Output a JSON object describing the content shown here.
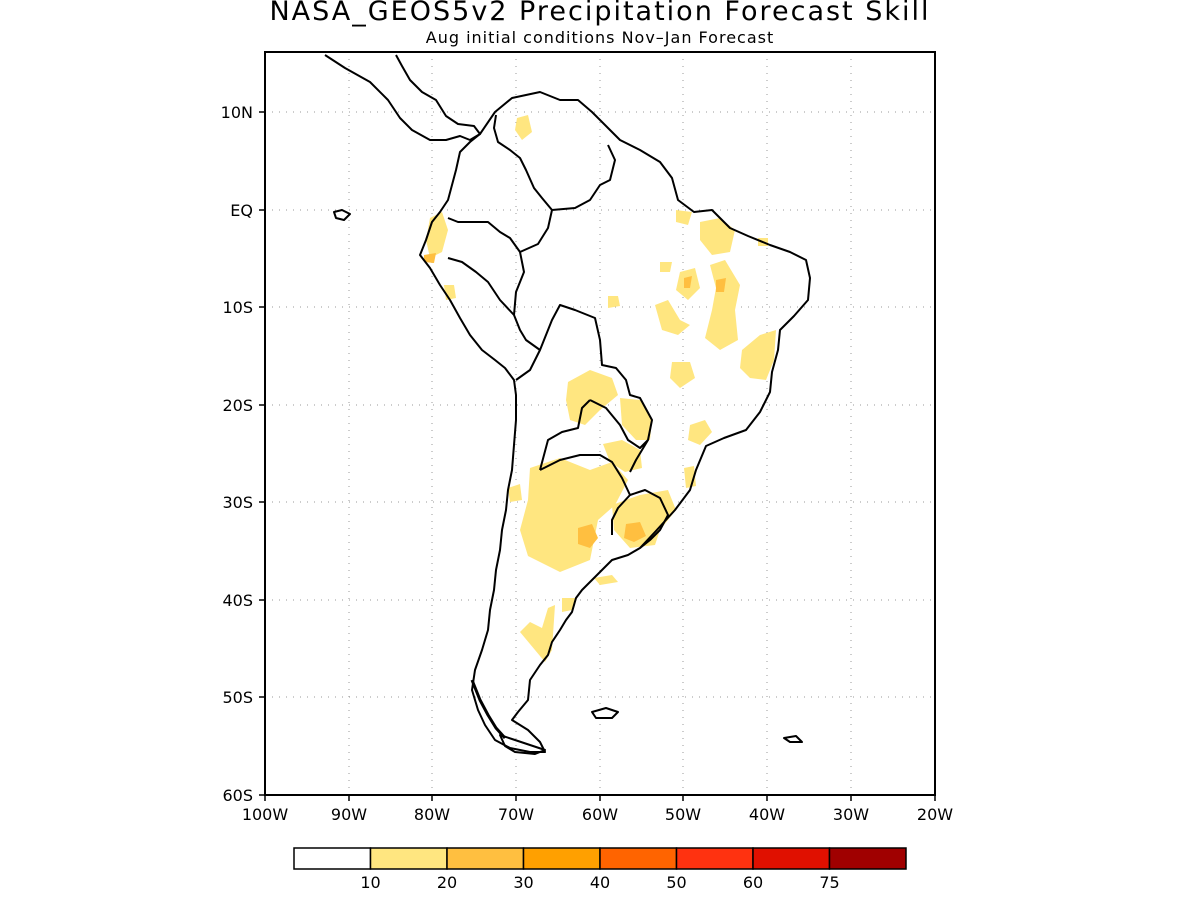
{
  "title": "NASA_GEOS5v2 Precipitation Forecast Skill",
  "subtitle": "Aug initial conditions  Nov–Jan Forecast",
  "map": {
    "lat_labels": [
      "10N",
      "EQ",
      "10S",
      "20S",
      "30S",
      "40S",
      "50S",
      "60S"
    ],
    "lon_labels": [
      "100W",
      "90W",
      "80W",
      "70W",
      "60W",
      "50W",
      "40W",
      "30W",
      "20W"
    ],
    "grid": "dotted"
  },
  "colorbar": {
    "labels": [
      "10",
      "20",
      "30",
      "40",
      "50",
      "60",
      "75"
    ],
    "colors": [
      "#ffffff",
      "#ffe680",
      "#ffbf40",
      "#ffa000",
      "#ff6400",
      "#ff3210",
      "#e01000",
      "#a00000"
    ]
  }
}
